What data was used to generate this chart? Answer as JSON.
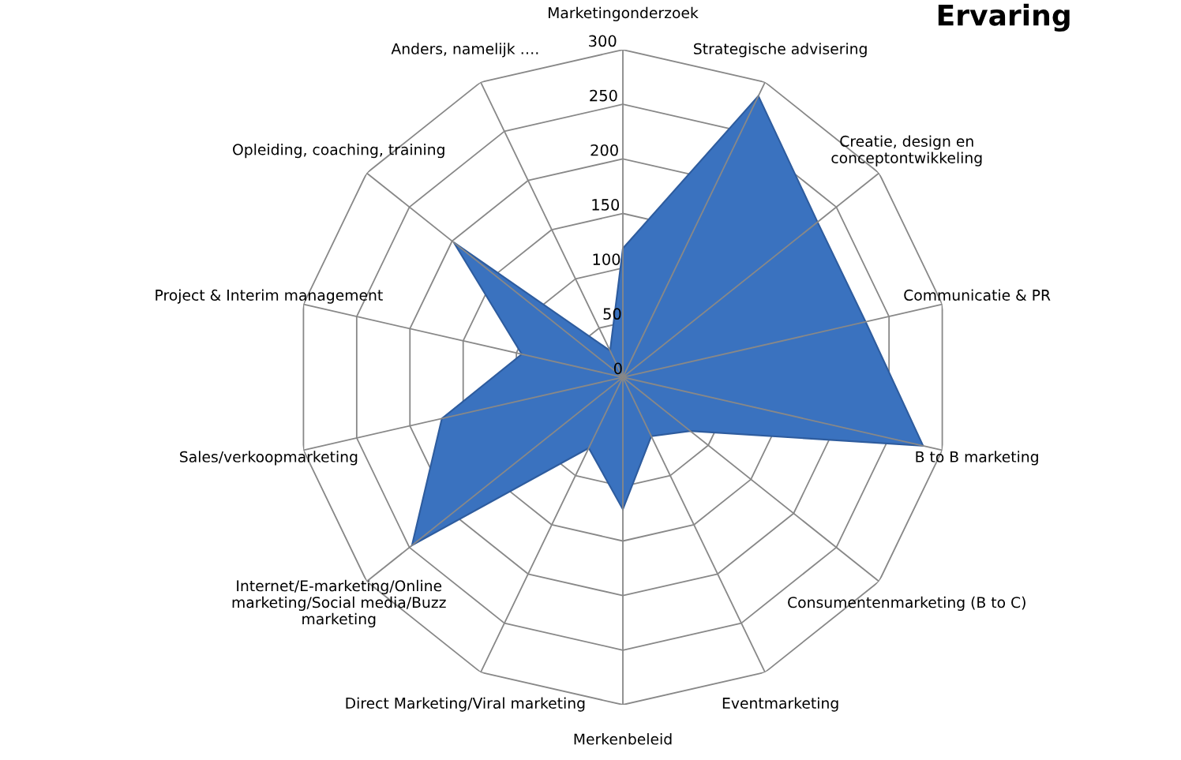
{
  "chart_data": {
    "type": "radar",
    "title": "Ervaring",
    "categories": [
      "Marketingonderzoek",
      "Strategische advisering",
      "Creatie, design en conceptontwikkeling",
      "Communicatie & PR",
      "B to B marketing",
      "Consumentenmarketing (B to C)",
      "Eventmarketing",
      "Merkenbeleid",
      "Direct Marketing/Viral marketing",
      "Internet/E-marketing/Online marketing/Social media/Buzz marketing",
      "Sales/verkoopmarketing",
      "Project & Interim management",
      "Opleiding, coaching, training",
      "Anders, namelijk …."
    ],
    "series": [
      {
        "color": "#3a72bf",
        "values": [
          118,
          286,
          228,
          228,
          282,
          79,
          60,
          121,
          72,
          247,
          170,
          95,
          198,
          27
        ]
      }
    ],
    "ylim": [
      0,
      300
    ],
    "yticks": [
      0,
      50,
      100,
      150,
      200,
      250,
      300
    ],
    "grid": true
  }
}
